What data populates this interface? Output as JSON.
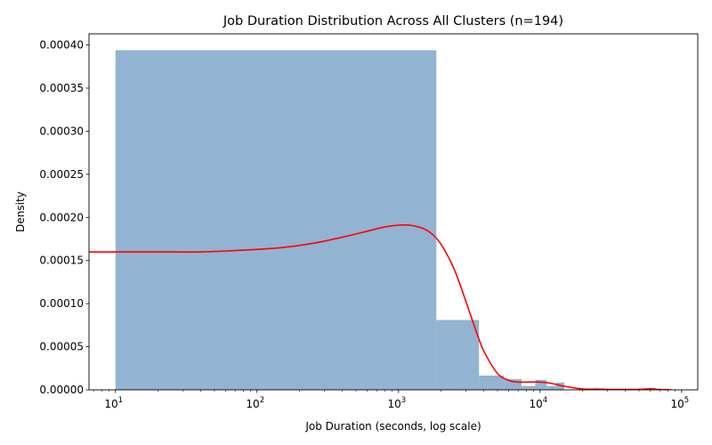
{
  "chart_data": {
    "type": "bar",
    "title": "Job Duration Distribution Across All Clusters (n=194)",
    "xlabel": "Job Duration (seconds, log scale)",
    "ylabel": "Density",
    "x_scale": "log",
    "xlim": [
      6.5,
      130000
    ],
    "ylim": [
      0,
      0.000413
    ],
    "x_ticks": [
      {
        "value": 10,
        "base": "10",
        "exp": "1"
      },
      {
        "value": 100,
        "base": "10",
        "exp": "2"
      },
      {
        "value": 1000,
        "base": "10",
        "exp": "3"
      },
      {
        "value": 10000,
        "base": "10",
        "exp": "4"
      },
      {
        "value": 100000,
        "base": "10",
        "exp": "5"
      }
    ],
    "y_ticks": [
      {
        "value": 0,
        "label": "0.00000"
      },
      {
        "value": 5e-05,
        "label": "0.00005"
      },
      {
        "value": 0.0001,
        "label": "0.00010"
      },
      {
        "value": 0.00015,
        "label": "0.00015"
      },
      {
        "value": 0.0002,
        "label": "0.00020"
      },
      {
        "value": 0.00025,
        "label": "0.00025"
      },
      {
        "value": 0.0003,
        "label": "0.00030"
      },
      {
        "value": 0.00035,
        "label": "0.00035"
      },
      {
        "value": 0.0004,
        "label": "0.00040"
      }
    ],
    "series": [
      {
        "kind": "histogram",
        "color": "#5b8bba",
        "opacity": 0.66,
        "bins": [
          {
            "x0": 10,
            "x1": 1850,
            "density": 0.000394
          },
          {
            "x0": 1850,
            "x1": 3700,
            "density": 8.1e-05
          },
          {
            "x0": 3700,
            "x1": 5550,
            "density": 1.65e-05
          },
          {
            "x0": 5550,
            "x1": 7400,
            "density": 1.25e-05
          },
          {
            "x0": 7400,
            "x1": 9250,
            "density": 4.5e-06
          },
          {
            "x0": 9250,
            "x1": 11100,
            "density": 1.15e-05
          },
          {
            "x0": 11100,
            "x1": 12950,
            "density": 4.5e-06
          },
          {
            "x0": 12950,
            "x1": 14800,
            "density": 8.5e-06
          },
          {
            "x0": 22000,
            "x1": 24000,
            "density": 1.2e-06
          },
          {
            "x0": 55000,
            "x1": 57000,
            "density": 1.2e-06
          }
        ]
      },
      {
        "kind": "kde",
        "color": "#ff0000",
        "x": [
          5,
          10,
          20,
          40,
          80,
          150,
          250,
          400,
          600,
          800,
          1000,
          1200,
          1500,
          1800,
          2100,
          2500,
          3000,
          3500,
          4000,
          5000,
          6000,
          7000,
          8000,
          10000,
          12000,
          15000,
          20000,
          25000,
          30000,
          40000,
          50000,
          60000,
          70000,
          85000
        ],
        "y": [
          0.00016,
          0.00016,
          0.00016,
          0.00016,
          0.000162,
          0.000165,
          0.00017,
          0.000177,
          0.000184,
          0.000189,
          0.000191,
          0.000191,
          0.000187,
          0.000178,
          0.000163,
          0.000138,
          0.000102,
          7e-05,
          4.5e-05,
          1.9e-05,
          1.1e-05,
          9e-06,
          9e-06,
          9e-06,
          7.5e-06,
          4e-06,
          1e-06,
          8e-07,
          5e-07,
          5e-07,
          5e-07,
          1.2e-06,
          4e-07,
          0
        ]
      }
    ],
    "grid": false,
    "legend": "none"
  }
}
